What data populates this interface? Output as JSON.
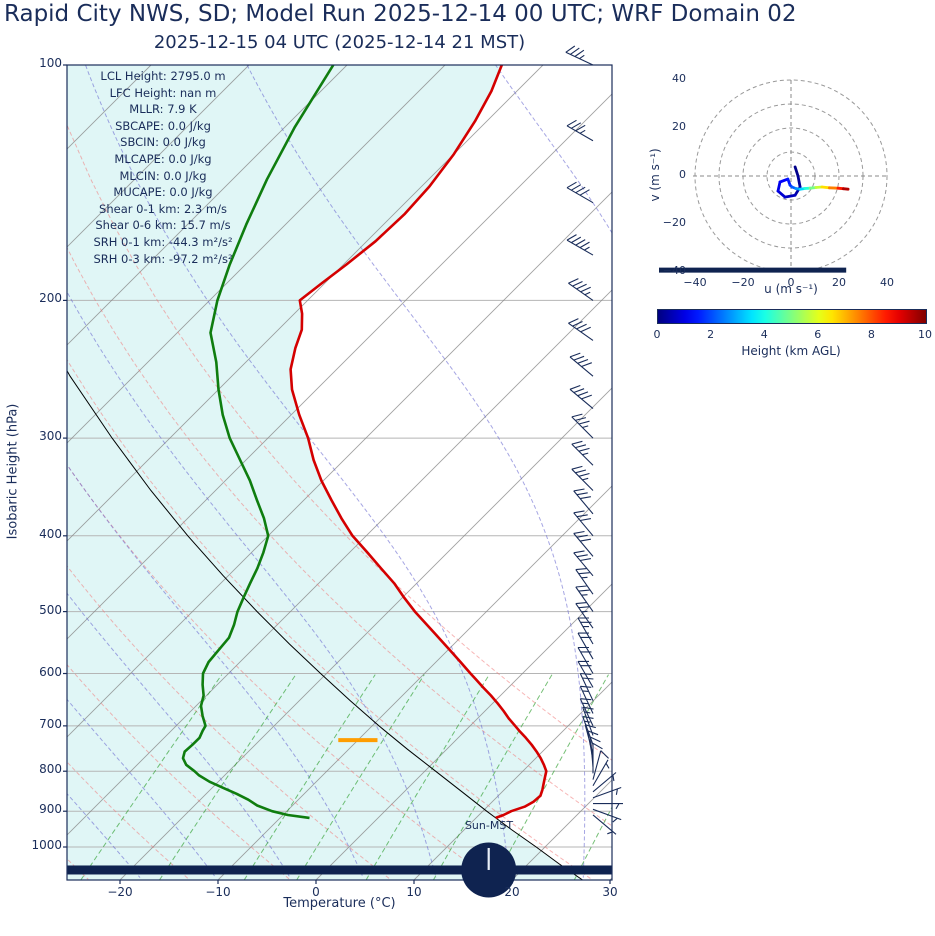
{
  "title": "Rapid City NWS, SD; Model Run 2025-12-14 00 UTC; WRF Domain 02",
  "subtitle": "2025-12-15 04 UTC  (2025-12-14 21 MST)",
  "skewt": {
    "ylabel": "Isobaric Height (hPa)",
    "xlabel": "Temperature (°C)",
    "pressure_ticks": [
      100,
      200,
      300,
      400,
      500,
      600,
      700,
      800,
      900,
      1000
    ],
    "temp_tick_values": [
      -20,
      -10,
      0,
      10,
      20,
      30
    ],
    "temp_tick_labels": [
      "−20",
      "−10",
      "0",
      "10",
      "20",
      "30"
    ],
    "annotations": [
      "LCL Height: 2795.0 m",
      "LFC Height: nan m",
      "MLLR: 7.9 K",
      "SBCAPE: 0.0 J/kg",
      "SBCIN: 0.0 J/kg",
      "MLCAPE: 0.0 J/kg",
      "MLCIN: 0.0 J/kg",
      "MUCAPE: 0.0 J/kg",
      "Shear 0-1 km: 2.3 m/s",
      "Shear 0-6 km: 15.7 m/s",
      "SRH 0-1 km: -44.3 m²/s²",
      "SRH 0-3 km: -97.2 m²/s²"
    ],
    "sun_label": "Sun-MST"
  },
  "hodograph": {
    "xlabel": "u (m s⁻¹)",
    "ylabel": "v (m s⁻¹)",
    "tick_values": [
      -40,
      -20,
      0,
      20,
      40
    ],
    "tick_labels": [
      "−40",
      "−20",
      "0",
      "20",
      "40"
    ]
  },
  "colorbar": {
    "label": "Height (km AGL)",
    "ticks": [
      0,
      2,
      4,
      6,
      8,
      10
    ],
    "min": 0,
    "max": 10,
    "colormap": "jet"
  },
  "colors": {
    "navy": "#1a2d5a",
    "ink": "#0f2350",
    "temperature": "#d40000",
    "dewpoint": "#0f7d0f",
    "parcel": "#000000",
    "dry_adiabat": "#f07a7a",
    "moist_adiabat": "#6a6ad0",
    "mixing_ratio": "#2e9e2e",
    "isotherm": "#8a8a8a",
    "grid": "#b5b5b5",
    "fill": "#e0f6f6",
    "lcl": "#ff9d00"
  },
  "chart_data": {
    "type": "line",
    "skew_t": {
      "pressure_hPa_range": [
        1102,
        100
      ],
      "temp_axis_range_C": [
        -25.4,
        30.2
      ],
      "temperature_C": [
        [
          918,
          12.0
        ],
        [
          910,
          12.5
        ],
        [
          900,
          12.9
        ],
        [
          888,
          13.8
        ],
        [
          875,
          14.2
        ],
        [
          860,
          14.3
        ],
        [
          845,
          13.9
        ],
        [
          830,
          13.4
        ],
        [
          815,
          12.9
        ],
        [
          800,
          12.4
        ],
        [
          785,
          11.5
        ],
        [
          770,
          10.5
        ],
        [
          755,
          9.4
        ],
        [
          740,
          8.2
        ],
        [
          725,
          6.9
        ],
        [
          710,
          5.5
        ],
        [
          700,
          4.6
        ],
        [
          685,
          3.2
        ],
        [
          670,
          1.9
        ],
        [
          655,
          0.5
        ],
        [
          640,
          -1.0
        ],
        [
          625,
          -2.6
        ],
        [
          610,
          -4.2
        ],
        [
          600,
          -5.3
        ],
        [
          580,
          -7.5
        ],
        [
          560,
          -9.8
        ],
        [
          540,
          -12.2
        ],
        [
          520,
          -14.7
        ],
        [
          500,
          -17.3
        ],
        [
          480,
          -19.8
        ],
        [
          460,
          -22.3
        ],
        [
          440,
          -25.2
        ],
        [
          420,
          -28.2
        ],
        [
          400,
          -31.4
        ],
        [
          380,
          -34.3
        ],
        [
          360,
          -37.2
        ],
        [
          340,
          -40.2
        ],
        [
          320,
          -43.1
        ],
        [
          300,
          -45.9
        ],
        [
          280,
          -49.2
        ],
        [
          260,
          -52.5
        ],
        [
          245,
          -54.7
        ],
        [
          230,
          -56.4
        ],
        [
          218,
          -57.6
        ],
        [
          208,
          -59.2
        ],
        [
          200,
          -60.8
        ],
        [
          190,
          -60.3
        ],
        [
          180,
          -59.7
        ],
        [
          168,
          -59.1
        ],
        [
          155,
          -58.9
        ],
        [
          143,
          -59.2
        ],
        [
          130,
          -60.0
        ],
        [
          118,
          -61.2
        ],
        [
          108,
          -62.6
        ],
        [
          100,
          -64.2
        ]
      ],
      "dewpoint_C": [
        [
          918,
          -7.0
        ],
        [
          910,
          -9.5
        ],
        [
          900,
          -11.5
        ],
        [
          885,
          -13.6
        ],
        [
          870,
          -15.1
        ],
        [
          855,
          -16.9
        ],
        [
          840,
          -18.9
        ],
        [
          825,
          -20.9
        ],
        [
          810,
          -22.6
        ],
        [
          800,
          -23.5
        ],
        [
          785,
          -25.0
        ],
        [
          770,
          -26.0
        ],
        [
          755,
          -26.5
        ],
        [
          740,
          -26.4
        ],
        [
          725,
          -26.4
        ],
        [
          710,
          -26.8
        ],
        [
          700,
          -27.0
        ],
        [
          680,
          -28.3
        ],
        [
          660,
          -29.5
        ],
        [
          640,
          -30.3
        ],
        [
          620,
          -31.5
        ],
        [
          600,
          -32.6
        ],
        [
          580,
          -33.2
        ],
        [
          560,
          -33.4
        ],
        [
          540,
          -33.6
        ],
        [
          520,
          -34.4
        ],
        [
          500,
          -35.4
        ],
        [
          480,
          -36.2
        ],
        [
          460,
          -37.0
        ],
        [
          440,
          -37.8
        ],
        [
          420,
          -38.8
        ],
        [
          400,
          -40.0
        ],
        [
          380,
          -42.2
        ],
        [
          360,
          -44.8
        ],
        [
          340,
          -47.5
        ],
        [
          320,
          -50.6
        ],
        [
          300,
          -53.9
        ],
        [
          280,
          -57.0
        ],
        [
          260,
          -60.0
        ],
        [
          240,
          -63.0
        ],
        [
          220,
          -66.6
        ],
        [
          200,
          -69.2
        ],
        [
          180,
          -71.6
        ],
        [
          160,
          -74.0
        ],
        [
          140,
          -76.5
        ],
        [
          120,
          -79.0
        ],
        [
          100,
          -81.4
        ]
      ],
      "parcel_C": [
        [
          1102,
          27.2
        ],
        [
          1050,
          23.1
        ],
        [
          1000,
          19.1
        ],
        [
          950,
          14.8
        ],
        [
          918,
          12.0
        ],
        [
          900,
          10.4
        ],
        [
          850,
          5.9
        ],
        [
          800,
          1.1
        ],
        [
          750,
          -4.0
        ],
        [
          700,
          -9.3
        ],
        [
          650,
          -14.8
        ],
        [
          600,
          -20.6
        ],
        [
          550,
          -26.8
        ],
        [
          500,
          -33.4
        ],
        [
          450,
          -40.5
        ],
        [
          400,
          -48.2
        ],
        [
          350,
          -56.6
        ],
        [
          300,
          -65.9
        ],
        [
          250,
          -76.5
        ],
        [
          200,
          -88.6
        ]
      ],
      "mixing_ratio_lines_gkg": [
        0.5,
        1,
        2,
        3,
        5,
        8,
        12,
        20
      ],
      "wind_barbs_p_kt_dir": [
        [
          100,
          35,
          295
        ],
        [
          125,
          35,
          300
        ],
        [
          150,
          40,
          300
        ],
        [
          175,
          45,
          300
        ],
        [
          200,
          45,
          305
        ],
        [
          225,
          40,
          305
        ],
        [
          250,
          40,
          310
        ],
        [
          275,
          40,
          310
        ],
        [
          300,
          35,
          315
        ],
        [
          325,
          35,
          315
        ],
        [
          350,
          35,
          315
        ],
        [
          375,
          30,
          320
        ],
        [
          400,
          30,
          320
        ],
        [
          425,
          30,
          320
        ],
        [
          450,
          30,
          320
        ],
        [
          475,
          25,
          325
        ],
        [
          500,
          25,
          325
        ],
        [
          525,
          25,
          325
        ],
        [
          550,
          25,
          330
        ],
        [
          575,
          20,
          330
        ],
        [
          600,
          20,
          330
        ],
        [
          625,
          20,
          330
        ],
        [
          650,
          20,
          335
        ],
        [
          675,
          15,
          335
        ],
        [
          700,
          15,
          335
        ],
        [
          720,
          15,
          340
        ],
        [
          740,
          15,
          340
        ],
        [
          760,
          10,
          345
        ],
        [
          775,
          10,
          350
        ],
        [
          790,
          10,
          355
        ],
        [
          805,
          10,
          0
        ],
        [
          820,
          10,
          15
        ],
        [
          835,
          5,
          30
        ],
        [
          850,
          5,
          50
        ],
        [
          865,
          5,
          70
        ],
        [
          880,
          5,
          90
        ],
        [
          895,
          5,
          110
        ],
        [
          910,
          5,
          130
        ]
      ],
      "lcl_marker": {
        "p_hPa": 730,
        "t_from_C": -12,
        "t_to_C": -8
      },
      "ground_bar_p_hPa": 1070,
      "sun_marker": {
        "p_hPa": 1070,
        "t_C": 16.6
      }
    },
    "hodograph": {
      "rings_ms": [
        10,
        20,
        30,
        40
      ],
      "axis_range_ms": [
        -40,
        40
      ],
      "trace_u_v_heightkm": [
        [
          1.7,
          3.8,
          0.05
        ],
        [
          2.9,
          0,
          0.15
        ],
        [
          3.8,
          -4.6,
          0.3
        ],
        [
          1.7,
          -8,
          0.5
        ],
        [
          -2.5,
          -8.8,
          0.7
        ],
        [
          -5.4,
          -6.3,
          0.9
        ],
        [
          -4.6,
          -2.5,
          1.1
        ],
        [
          -1.3,
          -1.3,
          1.35
        ],
        [
          -0.4,
          -3.8,
          1.6
        ],
        [
          0.4,
          -4.6,
          1.9
        ],
        [
          2,
          -5.2,
          2.4
        ],
        [
          3.8,
          -5.5,
          3.0
        ],
        [
          5.8,
          -5.2,
          3.7
        ],
        [
          7.9,
          -5.1,
          4.5
        ],
        [
          10.4,
          -4.8,
          5.3
        ],
        [
          12.9,
          -4.6,
          6.1
        ],
        [
          16,
          -4.9,
          7.0
        ],
        [
          19.6,
          -5.1,
          8.0
        ],
        [
          21.8,
          -5.3,
          9.0
        ],
        [
          23.8,
          -5.5,
          10.0
        ]
      ],
      "ground_bar": {
        "u_from": -55,
        "u_to": 23,
        "v": -39.2
      }
    },
    "colorbar": {
      "label": "Height (km AGL)",
      "range_km": [
        0,
        10
      ]
    }
  }
}
